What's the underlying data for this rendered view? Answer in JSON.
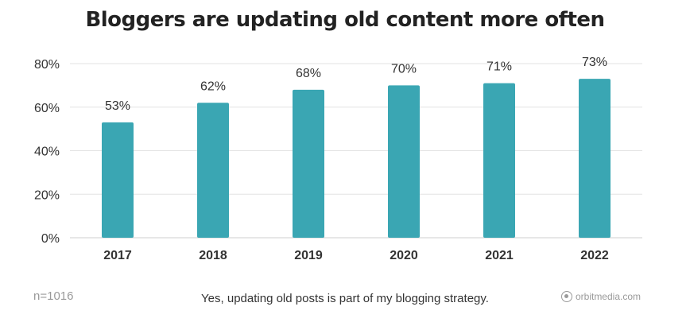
{
  "title": "Bloggers are updating old content more often",
  "footer": {
    "sample": "n=1016",
    "caption": "Yes, updating old posts is part of my blogging strategy.",
    "brand": "orbitmedia.com"
  },
  "colors": {
    "bar": "#3aa6b3",
    "grid": "#e3e3e3"
  },
  "chart_data": {
    "type": "bar",
    "title": "Bloggers are updating old content more often",
    "categories": [
      "2017",
      "2018",
      "2019",
      "2020",
      "2021",
      "2022"
    ],
    "values": [
      53,
      62,
      68,
      70,
      71,
      73
    ],
    "data_labels": [
      "53%",
      "62%",
      "68%",
      "70%",
      "71%",
      "73%"
    ],
    "ylim": [
      0,
      80
    ],
    "yticks": [
      0,
      20,
      40,
      60,
      80
    ],
    "ytick_labels": [
      "0%",
      "20%",
      "40%",
      "60%",
      "80%"
    ],
    "grid": true,
    "xlabel": "",
    "ylabel": ""
  }
}
